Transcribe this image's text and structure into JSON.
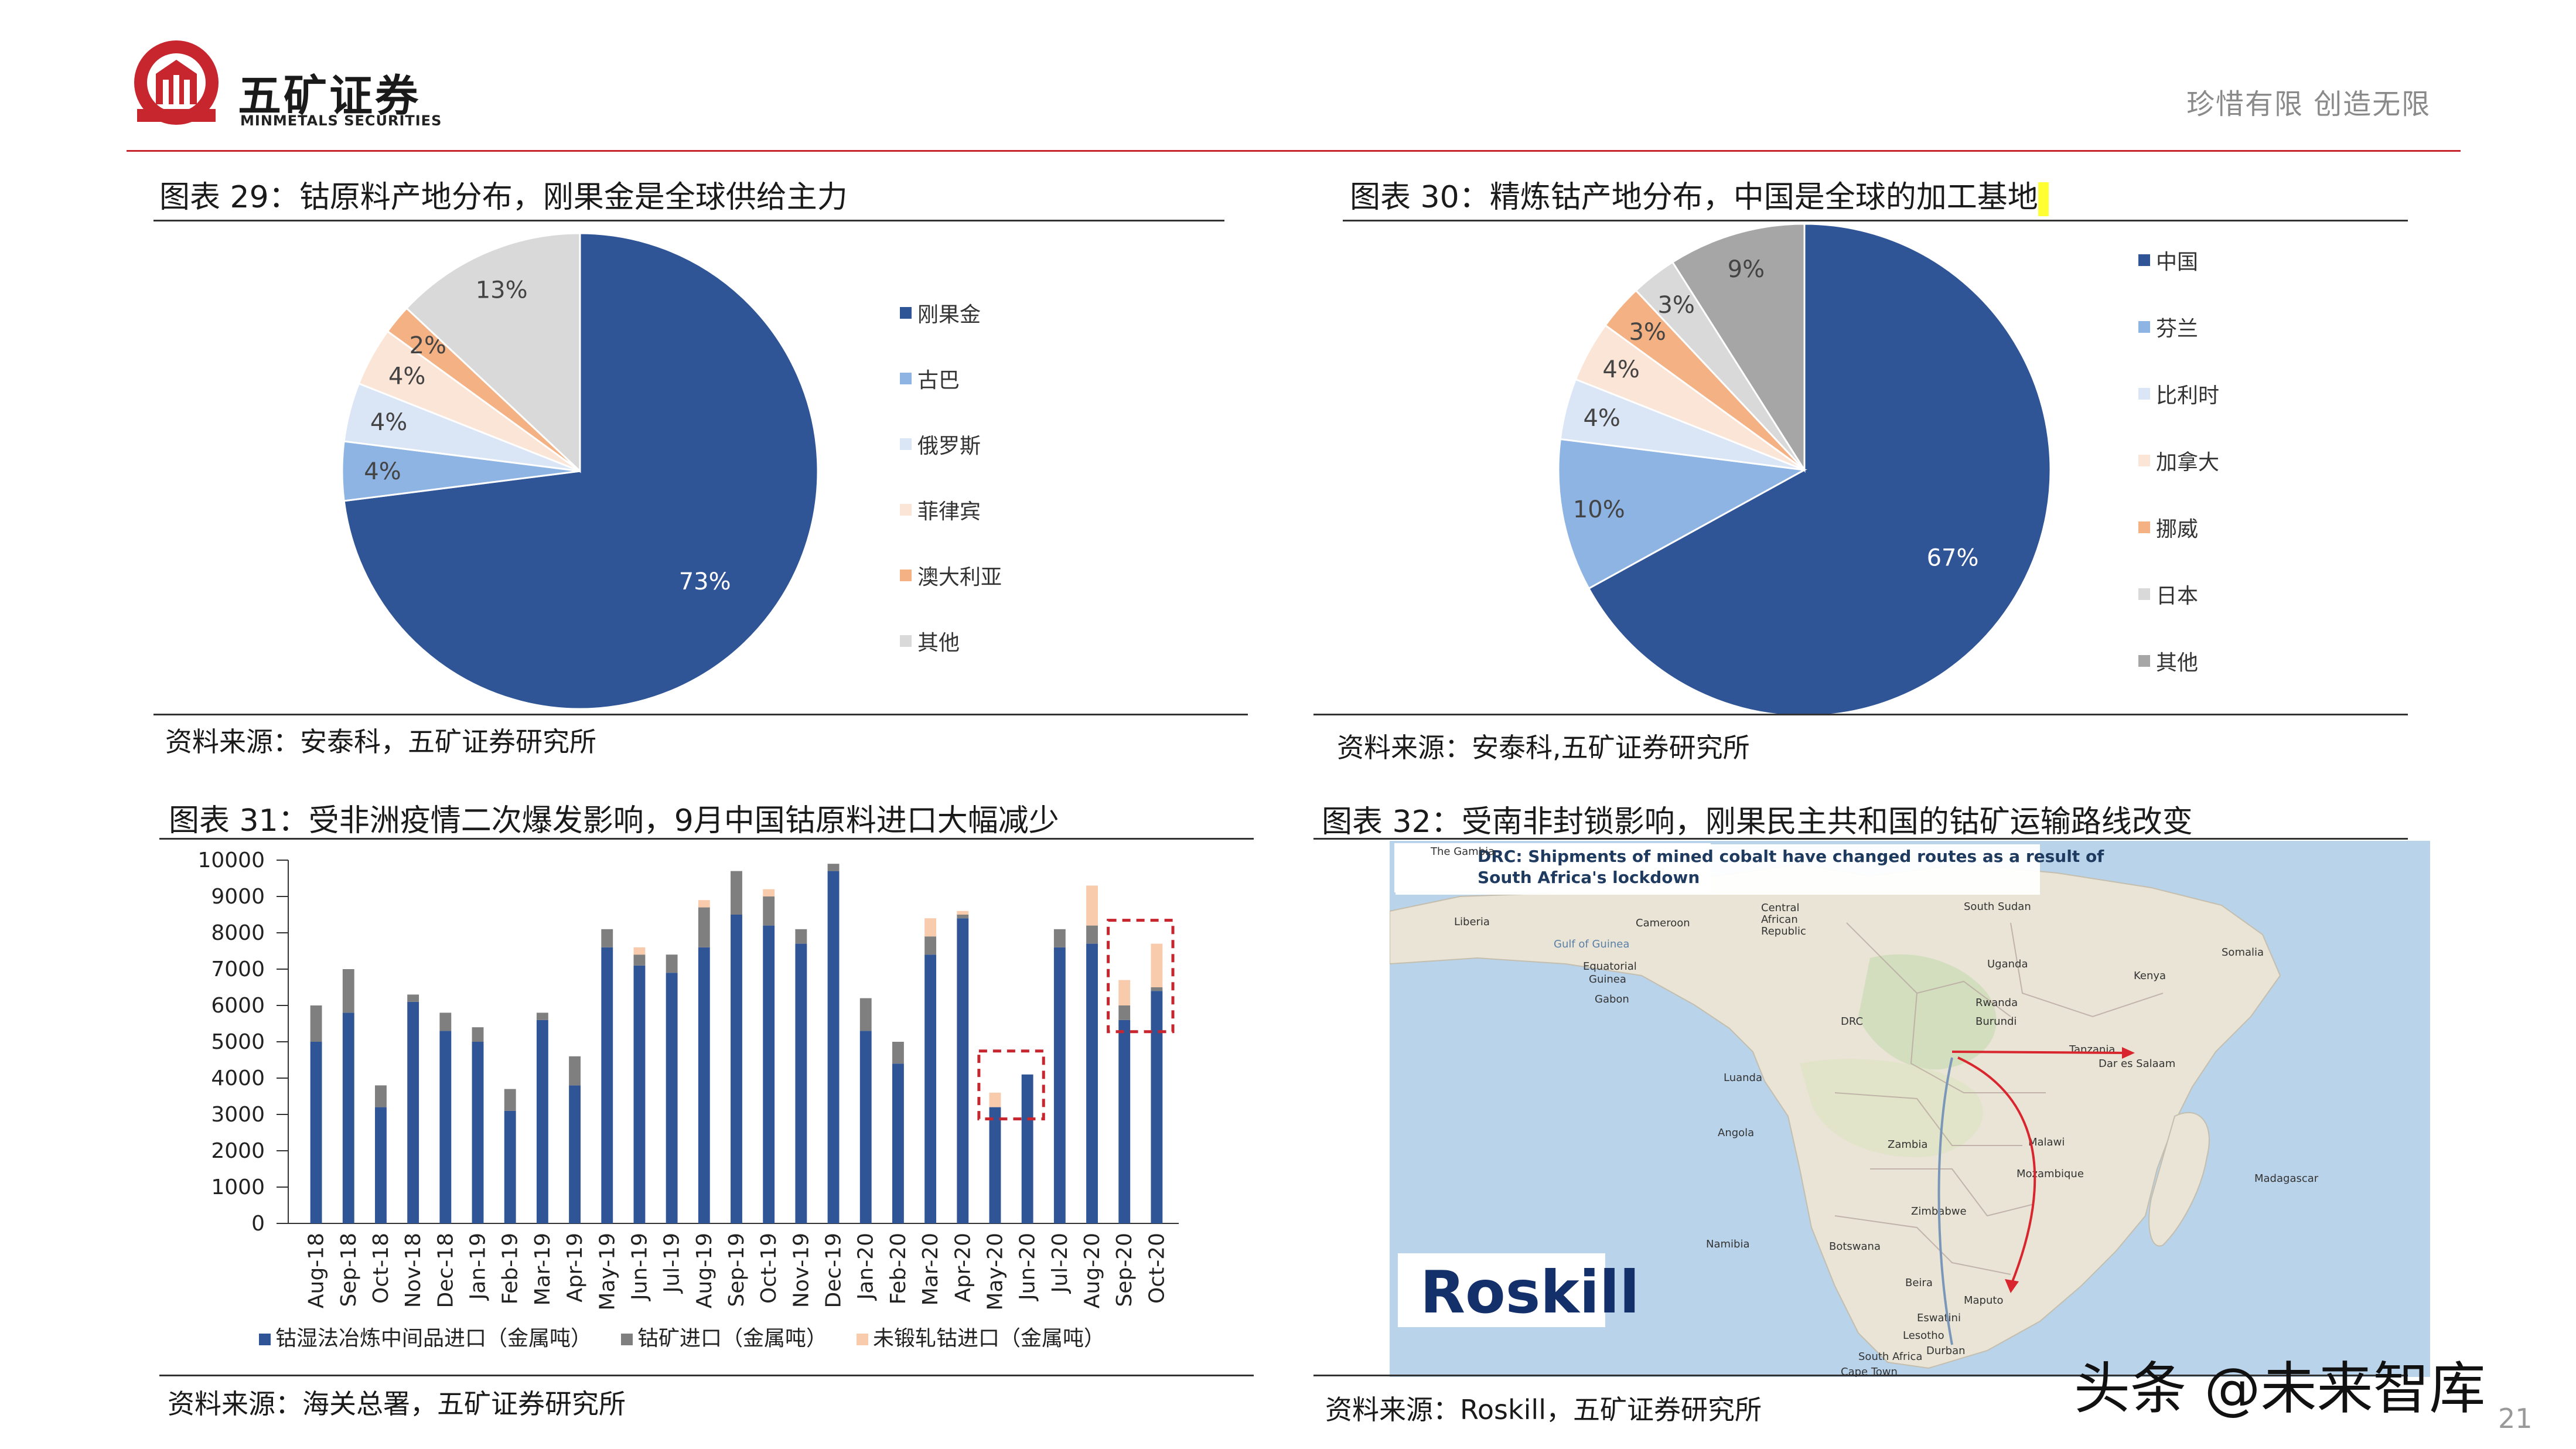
{
  "header": {
    "brand_cn": "五矿证券",
    "brand_en": "MINMETALS SECURITIES",
    "slogan": "珍惜有限  创造无限",
    "logo_ring_text": "MINMETALS"
  },
  "figures": [
    {
      "title": "图表 29：钴原料产地分布，刚果金是全球供给主力",
      "source": "资料来源：安泰科，五矿证券研究所"
    },
    {
      "title": "图表 30：精炼钴产地分布，中国是全球的加工基地",
      "source": "资料来源：安泰科,五矿证券研究所"
    },
    {
      "title": "图表 31：受非洲疫情二次爆发影响，9月中国钴原料进口大幅减少",
      "source": "资料来源：海关总署，五矿证券研究所"
    },
    {
      "title": "图表 32：受南非封锁影响，刚果民主共和国的钴矿运输路线改变",
      "source": "资料来源：Roskill，五矿证券研究所"
    }
  ],
  "chart_data": [
    {
      "type": "pie",
      "categories": [
        "刚果金",
        "古巴",
        "俄罗斯",
        "菲律宾",
        "澳大利亚",
        "其他"
      ],
      "values": [
        73,
        4,
        4,
        4,
        2,
        13
      ],
      "labels": [
        "73%",
        "4%",
        "4%",
        "4%",
        "2%",
        "13%"
      ],
      "colors": [
        "#2f5597",
        "#8eb4e3",
        "#dae5f5",
        "#fbe5d6",
        "#f4b183",
        "#d9d9d9"
      ],
      "legend": "right"
    },
    {
      "type": "pie",
      "categories": [
        "中国",
        "芬兰",
        "比利时",
        "加拿大",
        "挪威",
        "日本",
        "其他"
      ],
      "values": [
        67,
        10,
        4,
        4,
        3,
        3,
        9
      ],
      "labels": [
        "67%",
        "10%",
        "4%",
        "4%",
        "3%",
        "3%",
        "9%"
      ],
      "colors": [
        "#2f5597",
        "#8eb4e3",
        "#dae5f5",
        "#fbe5d6",
        "#f4b183",
        "#d9d9d9",
        "#a6a6a6"
      ],
      "legend": "right"
    },
    {
      "type": "bar",
      "stacked": true,
      "categories": [
        "Aug-18",
        "Sep-18",
        "Oct-18",
        "Nov-18",
        "Dec-18",
        "Jan-19",
        "Feb-19",
        "Mar-19",
        "Apr-19",
        "May-19",
        "Jun-19",
        "Jul-19",
        "Aug-19",
        "Sep-19",
        "Oct-19",
        "Nov-19",
        "Dec-19",
        "Jan-20",
        "Feb-20",
        "Mar-20",
        "Apr-20",
        "May-20",
        "Jun-20",
        "Jul-20",
        "Aug-20",
        "Sep-20",
        "Oct-20"
      ],
      "series": [
        {
          "name": "钴湿法冶炼中间品进口（金属吨）",
          "color": "#2f5597",
          "values": [
            5000,
            5800,
            3200,
            6100,
            5300,
            5000,
            3100,
            5600,
            3800,
            7600,
            7100,
            6900,
            7600,
            8500,
            8200,
            7700,
            9700,
            5300,
            4400,
            7400,
            8400,
            3200,
            4100,
            7600,
            7700,
            5600,
            6400
          ]
        },
        {
          "name": "钴矿进口（金属吨）",
          "color": "#7f7f7f",
          "values": [
            1000,
            1200,
            600,
            200,
            500,
            400,
            600,
            200,
            800,
            500,
            300,
            500,
            1100,
            1200,
            800,
            400,
            200,
            900,
            600,
            500,
            100,
            0,
            0,
            500,
            500,
            400,
            100
          ]
        },
        {
          "name": "未锻轧钴进口（金属吨）",
          "color": "#f8cbad",
          "values": [
            0,
            0,
            0,
            0,
            0,
            0,
            0,
            0,
            0,
            0,
            200,
            0,
            200,
            0,
            200,
            0,
            0,
            0,
            0,
            500,
            100,
            400,
            0,
            0,
            1100,
            700,
            1200
          ]
        }
      ],
      "ylim": [
        0,
        10000
      ],
      "yticks": [
        "0",
        "1000",
        "2000",
        "3000",
        "4000",
        "5000",
        "6000",
        "7000",
        "8000",
        "9000",
        "10000"
      ],
      "highlight_boxes": [
        [
          "May-20",
          "Jun-20"
        ],
        [
          "Sep-20",
          "Oct-20"
        ]
      ],
      "legend": "bottom"
    }
  ],
  "map": {
    "banner": "DRC: Shipments of mined cobalt have changed routes as a result of South Africa's lockdown",
    "brand": "Roskill",
    "places": [
      "The Gambia",
      "Liberia",
      "Cameroon",
      "Central African Republic",
      "South Sudan",
      "Somalia",
      "Equatorial Guinea",
      "Gabon",
      "Uganda",
      "Kenya",
      "DRC",
      "Rwanda",
      "Burundi",
      "Tanzania",
      "Dar es Salaam",
      "Luanda",
      "Angola",
      "Zambia",
      "Malawi",
      "Mozambique",
      "Madagascar",
      "Zimbabwe",
      "Namibia",
      "Botswana",
      "Beira",
      "Maputo",
      "Eswatini",
      "Lesotho",
      "Durban",
      "South Africa",
      "Cape Town",
      "Gulf of Guinea"
    ]
  },
  "footer": {
    "watermark": "头条 @未来智库",
    "page": "21"
  }
}
